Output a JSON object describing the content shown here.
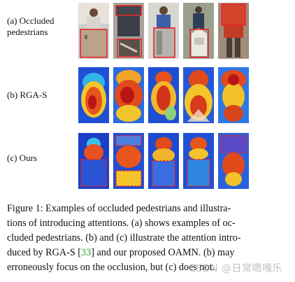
{
  "figure": {
    "rows": [
      {
        "id": "occluded",
        "label_line1": "(a) Occluded",
        "label_line2": "pedestrians"
      },
      {
        "id": "rga",
        "label_line1": "(b) RGA-S",
        "label_line2": ""
      },
      {
        "id": "ours",
        "label_line1": "(c) Ours",
        "label_line2": ""
      }
    ],
    "colors": {
      "occlusion_box": "#e8242a",
      "citation": "#2aa02a"
    }
  },
  "caption": {
    "line1": "Figure 1: Examples of occluded pedestrians and illustra-",
    "line2": "tions of introducing attentions. (a) shows examples of oc-",
    "line3": "cluded pedestrians. (b) and (c) illustrate the attention intro-",
    "line4_pre": "duced by RGA-S [",
    "citation": "33",
    "line4_post": "] and our proposed OAMN. (b) may",
    "line5": "erroneously focus on the occlusion, but (c) does not."
  },
  "watermark": "CSDN @日常嗯嘎乐"
}
